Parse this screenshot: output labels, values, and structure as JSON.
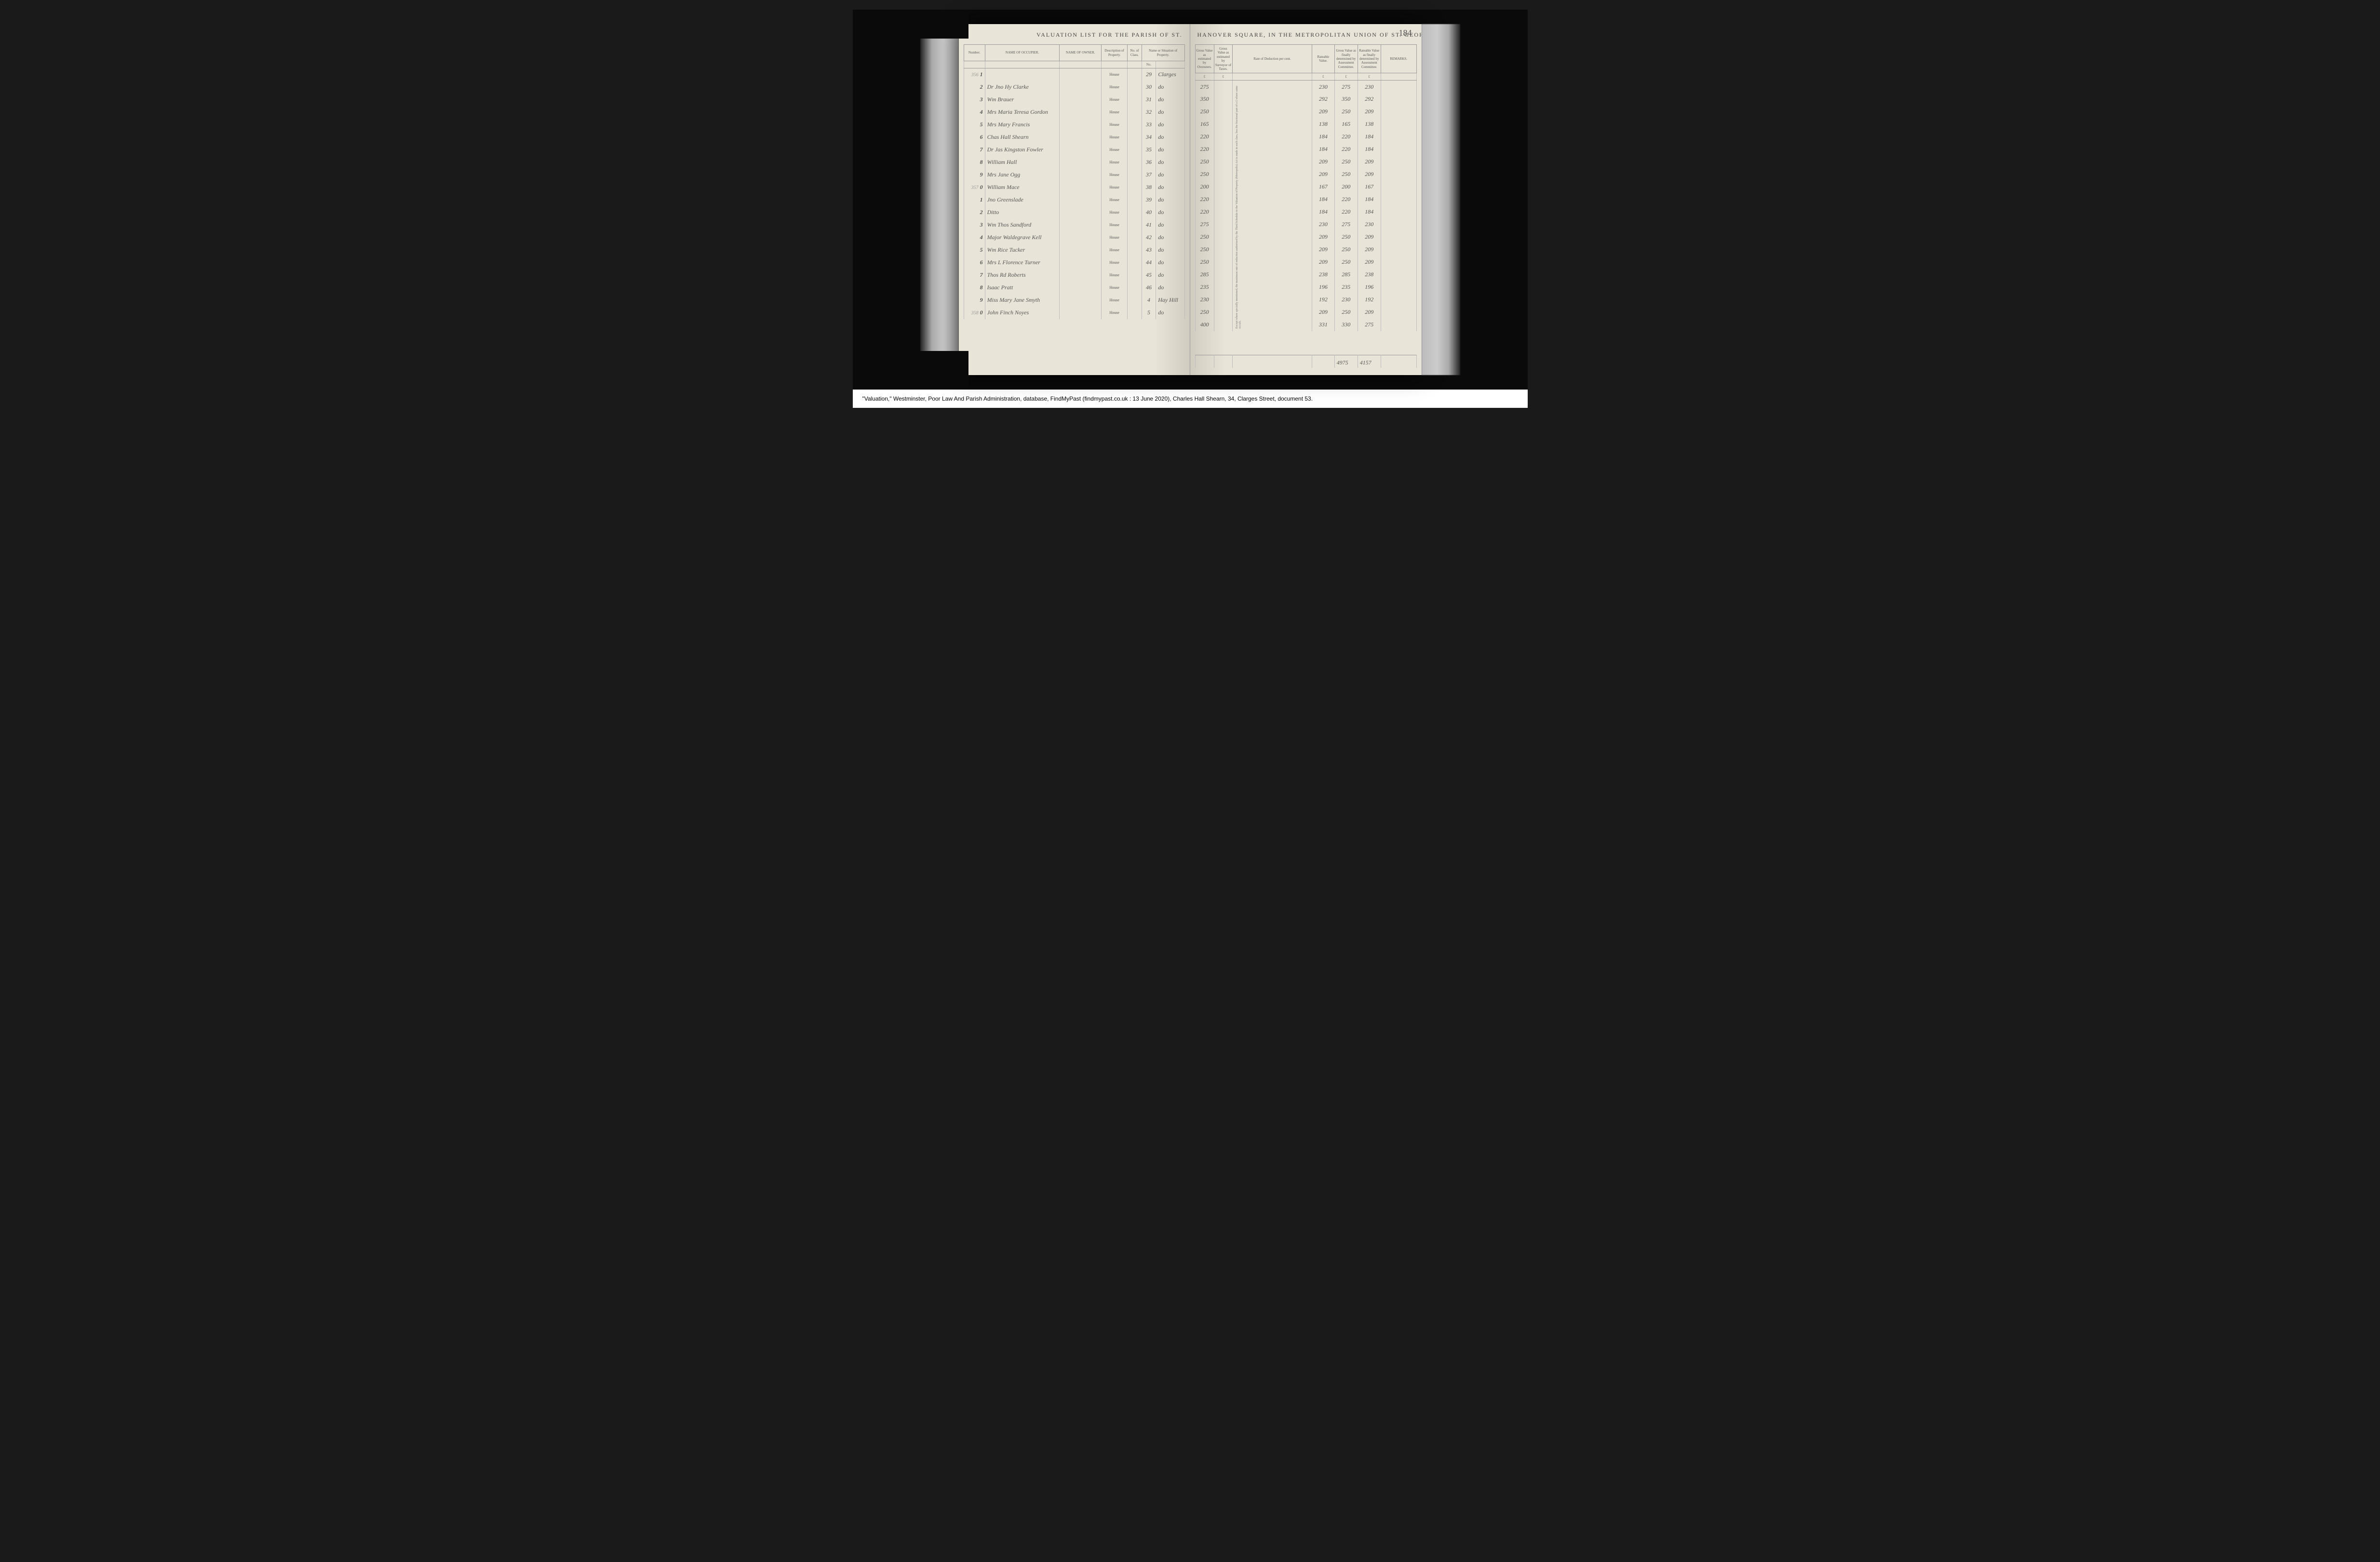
{
  "page_number": "184",
  "title_left": "VALUATION  LIST  for  the  Parish  of  St.",
  "title_right": "Hanover  Square,  in  the  Metropolitan  Union  of  St.  George.",
  "columns_left": {
    "number": "Number.",
    "occupier": "NAME OF OCCUPIER.",
    "owner": "NAME OF OWNER.",
    "description": "Description of Property.",
    "class": "No. of Class.",
    "street": "Name or Situation of Property."
  },
  "columns_right": {
    "gross1": "Gross Value as estimated by Overseers.",
    "gross2": "Gross Value as estimated by Surveyor of Taxes.",
    "rate": "Rate of Deduction per cent.",
    "rateable": "Rateable Value.",
    "gv_committee": "Gross Value as finally determined by Assessment Committee.",
    "rv_committee": "Rateable Value as finally determined by Assessment Committee.",
    "remarks": "REMARKS."
  },
  "currency_headers": [
    "£",
    "s.",
    "£",
    "s.",
    "£",
    "s.",
    "£",
    "s.",
    "£",
    "s."
  ],
  "vertical_note": "Except where specially mentioned, the maximum rate of reduction authorised by the Third Schedule to the Valuation of Property (Metropolis) Act is made in each class, less the fractional part of a £ where same occurs.",
  "street_header_no": "No.",
  "rows": [
    {
      "num_prefix": "356",
      "num": "1",
      "occupier": "",
      "desc": "House",
      "street_no": "29",
      "street": "Clarges",
      "gross1": "275",
      "rateable": "230",
      "gv": "275",
      "rv": "230"
    },
    {
      "num_prefix": "",
      "num": "2",
      "occupier": "Dr Jno Hy Clarke",
      "desc": "House",
      "street_no": "30",
      "street": "do",
      "gross1": "350",
      "rateable": "292",
      "gv": "350",
      "rv": "292"
    },
    {
      "num_prefix": "",
      "num": "3",
      "occupier": "Wm Brauer",
      "desc": "House",
      "street_no": "31",
      "street": "do",
      "gross1": "250",
      "rateable": "209",
      "gv": "250",
      "rv": "209"
    },
    {
      "num_prefix": "",
      "num": "4",
      "occupier": "Mrs Maria Teresa Gordon",
      "desc": "House",
      "street_no": "32",
      "street": "do",
      "gross1": "165",
      "rateable": "138",
      "gv": "165",
      "rv": "138"
    },
    {
      "num_prefix": "",
      "num": "5",
      "occupier": "Mrs Mary Francis",
      "desc": "House",
      "street_no": "33",
      "street": "do",
      "gross1": "220",
      "rateable": "184",
      "gv": "220",
      "rv": "184"
    },
    {
      "num_prefix": "",
      "num": "6",
      "occupier": "Chas Hall Shearn",
      "desc": "House",
      "street_no": "34",
      "street": "do",
      "gross1": "220",
      "rateable": "184",
      "gv": "220",
      "rv": "184"
    },
    {
      "num_prefix": "",
      "num": "7",
      "occupier": "Dr Jas Kingston Fowler",
      "desc": "House",
      "street_no": "35",
      "street": "do",
      "gross1": "250",
      "rateable": "209",
      "gv": "250",
      "rv": "209"
    },
    {
      "num_prefix": "",
      "num": "8",
      "occupier": "William Hall",
      "desc": "House",
      "street_no": "36",
      "street": "do",
      "gross1": "250",
      "rateable": "209",
      "gv": "250",
      "rv": "209"
    },
    {
      "num_prefix": "",
      "num": "9",
      "occupier": "Mrs Jane Ogg",
      "desc": "House",
      "street_no": "37",
      "street": "do",
      "gross1": "200",
      "rateable": "167",
      "gv": "200",
      "rv": "167"
    },
    {
      "num_prefix": "357",
      "num": "0",
      "occupier": "William Mace",
      "desc": "House",
      "street_no": "38",
      "street": "do",
      "gross1": "220",
      "rateable": "184",
      "gv": "220",
      "rv": "184"
    },
    {
      "num_prefix": "",
      "num": "1",
      "occupier": "Jno Greenslade",
      "desc": "House",
      "street_no": "39",
      "street": "do",
      "gross1": "220",
      "rateable": "184",
      "gv": "220",
      "rv": "184"
    },
    {
      "num_prefix": "",
      "num": "2",
      "occupier": "Ditto",
      "desc": "House",
      "street_no": "40",
      "street": "do",
      "gross1": "275",
      "rateable": "230",
      "gv": "275",
      "rv": "230"
    },
    {
      "num_prefix": "",
      "num": "3",
      "occupier": "Wm Thos Sandford",
      "desc": "House",
      "street_no": "41",
      "street": "do",
      "gross1": "250",
      "rateable": "209",
      "gv": "250",
      "rv": "209"
    },
    {
      "num_prefix": "",
      "num": "4",
      "occupier": "Major Waldegrave Kell",
      "desc": "House",
      "street_no": "42",
      "street": "do",
      "gross1": "250",
      "rateable": "209",
      "gv": "250",
      "rv": "209"
    },
    {
      "num_prefix": "",
      "num": "5",
      "occupier": "Wm Rice Tucker",
      "desc": "House",
      "street_no": "43",
      "street": "do",
      "gross1": "250",
      "rateable": "209",
      "gv": "250",
      "rv": "209"
    },
    {
      "num_prefix": "",
      "num": "6",
      "occupier": "Mrs L Florence Turner",
      "desc": "House",
      "street_no": "44",
      "street": "do",
      "gross1": "285",
      "rateable": "238",
      "gv": "285",
      "rv": "238"
    },
    {
      "num_prefix": "",
      "num": "7",
      "occupier": "Thos Rd Roberts",
      "desc": "House",
      "street_no": "45",
      "street": "do",
      "gross1": "235",
      "rateable": "196",
      "gv": "235",
      "rv": "196"
    },
    {
      "num_prefix": "",
      "num": "8",
      "occupier": "Isaac Pratt",
      "desc": "House",
      "street_no": "46",
      "street": "do",
      "gross1": "230",
      "rateable": "192",
      "gv": "230",
      "rv": "192"
    },
    {
      "num_prefix": "",
      "num": "9",
      "occupier": "Miss Mary Jane Smyth",
      "desc": "House",
      "street_no": "4",
      "street": "Hay Hill",
      "gross1": "250",
      "rateable": "209",
      "gv": "250",
      "rv": "209"
    },
    {
      "num_prefix": "358",
      "num": "0",
      "occupier": "John Finch Noyes",
      "desc": "House",
      "street_no": "5",
      "street": "do",
      "gross1": "400",
      "rateable": "331",
      "gv": "330",
      "rv": "275"
    }
  ],
  "totals": {
    "gv": "4975",
    "rv": "4157"
  },
  "citation": "\"Valuation,\" Westminster, Poor Law And Parish Administration, database, FindMyPast (findmypast.co.uk : 13 June 2020), Charles Hall Shearn, 34, Clarges Street, document 53.",
  "colors": {
    "page_bg": "#ebe7db",
    "dark_bg": "#1a1a1a",
    "ink": "#555555",
    "handwriting": "#6a6a6a",
    "border": "#999999"
  }
}
